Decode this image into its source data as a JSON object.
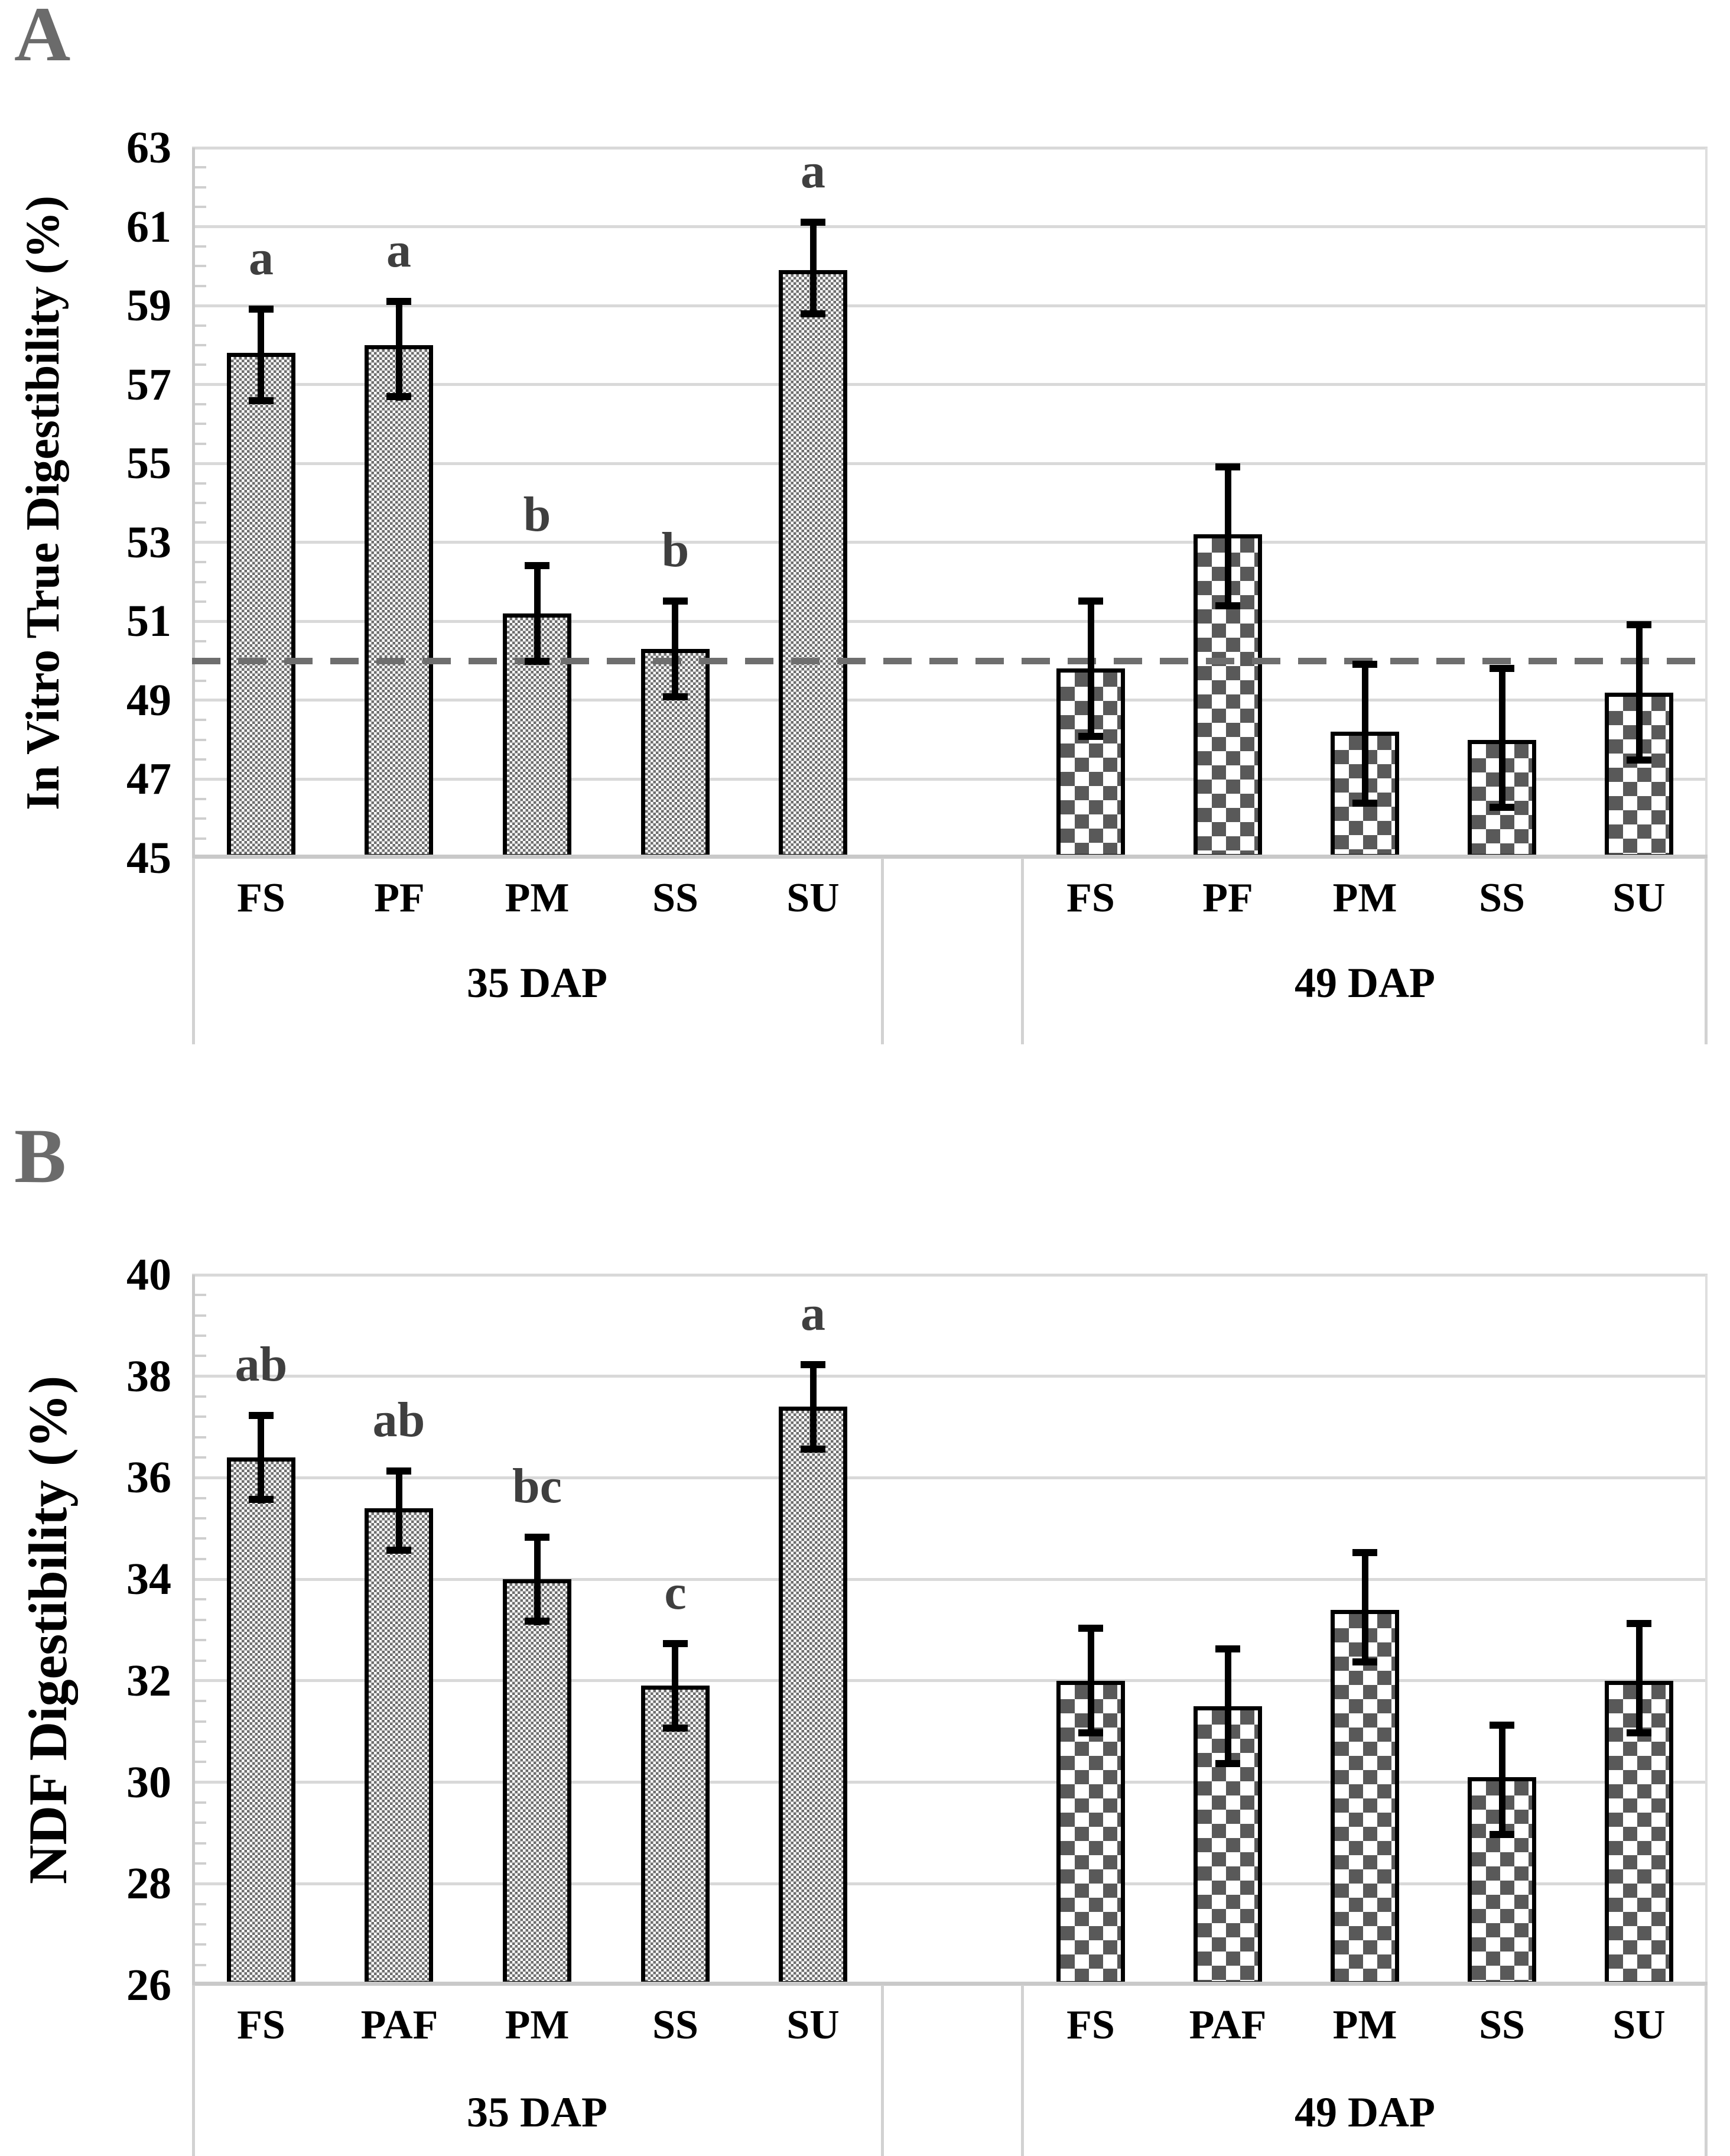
{
  "figure": {
    "background": "#ffffff",
    "description_visible_text_only": true
  },
  "colors": {
    "panel_label": "#6b6b6b",
    "significance_letters": "#3f3f3f",
    "reference_line": "#6e6e6e",
    "bar_pattern_dark": "#595959",
    "bar_pattern_fine": "#6e6e6e",
    "gridlines": "#d9d9d9"
  },
  "chart_data": [
    {
      "type": "bar",
      "panel_label": "A",
      "ylabel": "In Vitro True Digestibility (%)",
      "ylim": [
        45,
        63
      ],
      "ytick_step": 2,
      "minor_tick_step": 0.5,
      "yticks": [
        45,
        47,
        49,
        51,
        53,
        55,
        57,
        59,
        61,
        63
      ],
      "grid": true,
      "reference_line_y": 50,
      "groups": [
        {
          "label": "35 DAP",
          "pattern": "fine-checker",
          "categories": [
            "FS",
            "PF",
            "PM",
            "SS",
            "SU"
          ],
          "values": [
            57.8,
            58.0,
            51.2,
            50.3,
            59.9
          ],
          "err_low": [
            56.5,
            56.6,
            49.9,
            49.0,
            58.7
          ],
          "err_high": [
            59.0,
            59.2,
            52.5,
            51.6,
            61.2
          ],
          "letters": [
            "a",
            "a",
            "b",
            "b",
            "a"
          ]
        },
        {
          "label": "49 DAP",
          "pattern": "coarse-checker",
          "categories": [
            "FS",
            "PF",
            "PM",
            "SS",
            "SU"
          ],
          "values": [
            49.8,
            53.2,
            48.2,
            48.0,
            49.2
          ],
          "err_low": [
            48.0,
            51.3,
            46.3,
            46.2,
            47.4
          ],
          "err_high": [
            51.6,
            55.0,
            50.0,
            49.9,
            51.0
          ],
          "letters": [
            "",
            "",
            "",
            "",
            ""
          ]
        }
      ]
    },
    {
      "type": "bar",
      "panel_label": "B",
      "ylabel": "NDF Digestibility (%)",
      "ylim": [
        26,
        40
      ],
      "ytick_step": 2,
      "minor_tick_step": 0.4,
      "yticks": [
        26,
        28,
        30,
        32,
        34,
        36,
        38,
        40
      ],
      "grid": true,
      "reference_line_y": null,
      "groups": [
        {
          "label": "35 DAP",
          "pattern": "fine-checker",
          "categories": [
            "FS",
            "PAF",
            "PM",
            "SS",
            "SU"
          ],
          "values": [
            36.4,
            35.4,
            34.0,
            31.9,
            37.4
          ],
          "err_low": [
            35.5,
            34.5,
            33.1,
            31.0,
            36.5
          ],
          "err_high": [
            37.3,
            36.2,
            34.9,
            32.8,
            38.3
          ],
          "letters": [
            "ab",
            "ab",
            "bc",
            "c",
            "a"
          ]
        },
        {
          "label": "49 DAP",
          "pattern": "coarse-checker",
          "categories": [
            "FS",
            "PAF",
            "PM",
            "SS",
            "SU"
          ],
          "values": [
            32.0,
            31.5,
            33.4,
            30.1,
            32.0
          ],
          "err_low": [
            30.9,
            30.3,
            32.3,
            28.9,
            30.9
          ],
          "err_high": [
            33.1,
            32.7,
            34.6,
            31.2,
            33.2
          ],
          "letters": [
            "",
            "",
            "",
            "",
            ""
          ]
        }
      ]
    }
  ]
}
